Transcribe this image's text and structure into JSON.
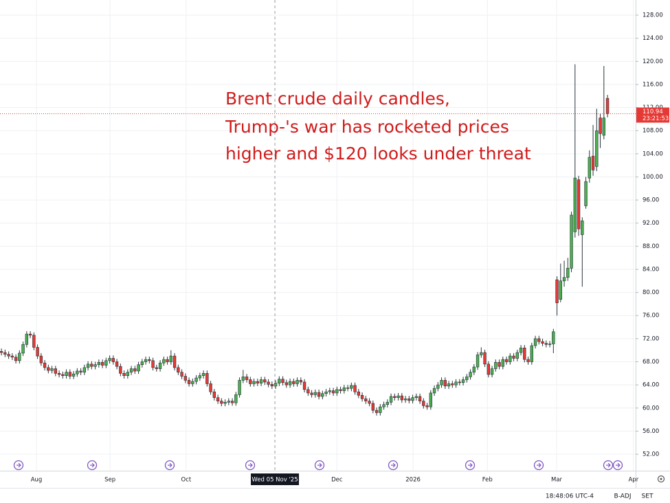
{
  "chart_data": {
    "type": "candlestick",
    "annotation": [
      "Brent crude daily candles,",
      "Trump-'s war has rocketed prices",
      "higher and $120 looks under threat"
    ],
    "categories": [
      null,
      null,
      null,
      null,
      null,
      null,
      null,
      null,
      null,
      null,
      null,
      null,
      null,
      null,
      null,
      null,
      null,
      null,
      null,
      null,
      null,
      null,
      null,
      null,
      null,
      null,
      null,
      null,
      null,
      null,
      null,
      null,
      null,
      null,
      null,
      null,
      null,
      null,
      null,
      null,
      null,
      null,
      null,
      null,
      null,
      null,
      null,
      null,
      null,
      null,
      null,
      null,
      null,
      null,
      null,
      null,
      null,
      null,
      null,
      null,
      null,
      null,
      null,
      null,
      null,
      null,
      null,
      null,
      null,
      null,
      null,
      null,
      null,
      null,
      null,
      null,
      null,
      null,
      null,
      null,
      null,
      null,
      null,
      null,
      null,
      null,
      null,
      null,
      null,
      null,
      null,
      null,
      null,
      null,
      null,
      null,
      null,
      null,
      null,
      null,
      null,
      null,
      null,
      null,
      null,
      null,
      null,
      null,
      null,
      null,
      null,
      null,
      null,
      null,
      null,
      null,
      null,
      null,
      null,
      null,
      null,
      null,
      null,
      null,
      null,
      null,
      null,
      null,
      null,
      null,
      null,
      null,
      null,
      null,
      null,
      null,
      null,
      null,
      null,
      null,
      null,
      null,
      null,
      null,
      null,
      null,
      null,
      null,
      null,
      null,
      null,
      null,
      null,
      null,
      null,
      null,
      null,
      null,
      null,
      null,
      null,
      null,
      null,
      null,
      null,
      null,
      null,
      null,
      null
    ],
    "open": [
      69.8,
      69.6,
      69.3,
      69.0,
      68.8,
      68.2,
      69.5,
      71.0,
      72.8,
      72.6,
      70.5,
      69.0,
      67.8,
      67.0,
      66.5,
      66.8,
      66.0,
      65.8,
      65.6,
      66.2,
      65.5,
      65.9,
      66.4,
      66.2,
      67.0,
      67.6,
      67.2,
      67.5,
      67.9,
      67.4,
      68.2,
      68.6,
      68.0,
      67.2,
      66.0,
      65.6,
      66.2,
      66.8,
      66.4,
      67.5,
      68.0,
      68.4,
      68.2,
      67.0,
      66.8,
      67.8,
      68.4,
      68.0,
      69.0,
      67.0,
      66.2,
      65.5,
      64.8,
      64.2,
      64.6,
      65.2,
      65.6,
      66.0,
      64.2,
      62.8,
      61.8,
      61.2,
      60.8,
      61.0,
      61.2,
      60.9,
      62.3,
      64.8,
      65.4,
      64.9,
      64.2,
      64.6,
      64.3,
      64.9,
      64.5,
      64.1,
      63.8,
      64.3,
      65.0,
      64.4,
      64.0,
      64.6,
      64.2,
      64.8,
      64.5,
      63.2,
      62.6,
      62.3,
      62.7,
      62.0,
      62.5,
      62.8,
      63.0,
      62.6,
      63.2,
      63.0,
      63.5,
      63.4,
      63.9,
      62.8,
      62.2,
      61.6,
      61.2,
      60.8,
      59.6,
      59.2,
      60.2,
      60.6,
      61.0,
      62.0,
      61.8,
      62.1,
      61.4,
      61.6,
      61.3,
      61.8,
      62.0,
      61.2,
      60.4,
      60.2,
      62.6,
      63.4,
      64.0,
      64.8,
      63.8,
      64.2,
      64.0,
      64.5,
      64.4,
      64.9,
      65.4,
      66.2,
      67.1,
      69.2,
      69.6,
      67.6,
      65.8,
      66.8,
      67.9,
      67.2,
      68.4,
      68.0,
      69.0,
      68.6,
      69.6,
      70.4,
      68.4,
      68.0,
      70.8,
      72.0,
      71.5,
      71.2,
      71.0,
      71.1,
      82.2,
      78.8,
      82.0,
      82.6,
      84.2,
      90.5,
      99.5,
      90.0,
      95.0,
      99.8,
      103.6,
      101.8,
      110.2,
      107.2,
      113.6
    ],
    "high": [
      70.3,
      70.1,
      69.8,
      69.5,
      69.3,
      70.0,
      71.5,
      73.3,
      73.3,
      73.1,
      71.0,
      69.5,
      68.3,
      67.5,
      67.3,
      67.3,
      66.5,
      66.3,
      66.7,
      66.7,
      66.4,
      66.9,
      66.9,
      67.5,
      68.1,
      68.1,
      68.0,
      68.4,
      68.4,
      68.7,
      69.1,
      69.1,
      68.5,
      67.7,
      66.5,
      66.7,
      67.3,
      67.3,
      68.0,
      68.5,
      68.9,
      68.9,
      68.7,
      67.5,
      68.3,
      68.9,
      68.9,
      70.0,
      69.5,
      67.5,
      66.7,
      66.0,
      65.3,
      65.1,
      65.7,
      66.1,
      66.5,
      66.5,
      64.7,
      63.3,
      62.3,
      61.7,
      61.5,
      61.7,
      61.7,
      62.8,
      65.3,
      66.6,
      65.9,
      65.4,
      65.1,
      65.1,
      65.4,
      65.4,
      65.0,
      64.6,
      64.8,
      65.5,
      65.5,
      64.9,
      65.1,
      65.1,
      65.3,
      65.3,
      65.0,
      63.7,
      63.1,
      63.2,
      63.2,
      63.0,
      63.3,
      63.5,
      63.5,
      63.7,
      63.7,
      64.0,
      64.0,
      64.4,
      64.4,
      63.3,
      62.7,
      62.1,
      61.7,
      61.3,
      60.1,
      60.7,
      61.1,
      61.5,
      62.5,
      62.5,
      62.6,
      62.6,
      62.1,
      62.1,
      62.3,
      62.5,
      62.5,
      61.7,
      60.9,
      63.1,
      63.9,
      64.5,
      65.3,
      65.3,
      64.7,
      64.7,
      65.0,
      65.0,
      65.4,
      65.9,
      66.7,
      67.6,
      69.7,
      70.5,
      70.1,
      68.1,
      67.3,
      68.4,
      68.4,
      68.9,
      68.9,
      69.5,
      69.5,
      70.1,
      70.9,
      70.9,
      68.9,
      71.3,
      72.5,
      72.5,
      72.0,
      71.7,
      71.6,
      73.7,
      82.8,
      85.0,
      85.5,
      86.0,
      94.0,
      119.5,
      100.2,
      93.0,
      100.0,
      104.6,
      109.0,
      111.8,
      111.0,
      119.2,
      114.2
    ],
    "low": [
      69.1,
      68.8,
      68.5,
      68.3,
      67.7,
      67.7,
      69.0,
      70.5,
      72.1,
      70.0,
      68.5,
      67.3,
      66.5,
      66.0,
      66.0,
      65.5,
      65.3,
      65.1,
      65.1,
      65.0,
      65.0,
      65.4,
      65.7,
      65.7,
      66.5,
      66.7,
      66.7,
      67.0,
      66.9,
      66.9,
      67.7,
      67.5,
      66.7,
      65.5,
      65.1,
      65.1,
      65.7,
      65.9,
      65.9,
      67.0,
      67.5,
      67.7,
      66.5,
      66.3,
      66.3,
      67.3,
      67.5,
      67.5,
      66.5,
      65.7,
      65.0,
      64.3,
      63.7,
      63.7,
      64.1,
      64.7,
      65.1,
      63.7,
      62.3,
      61.3,
      60.7,
      60.3,
      60.3,
      60.5,
      60.4,
      60.4,
      61.8,
      64.3,
      64.4,
      63.7,
      63.7,
      63.8,
      63.8,
      64.0,
      63.6,
      63.3,
      63.3,
      63.8,
      63.9,
      63.5,
      63.5,
      63.7,
      63.7,
      64.0,
      62.7,
      62.1,
      61.8,
      61.8,
      61.5,
      61.5,
      62.0,
      62.3,
      62.1,
      62.1,
      62.5,
      62.5,
      62.9,
      62.9,
      62.3,
      61.7,
      61.1,
      60.7,
      60.3,
      59.1,
      58.7,
      58.7,
      59.7,
      60.1,
      60.5,
      61.3,
      61.3,
      60.9,
      60.9,
      60.8,
      60.8,
      61.3,
      60.7,
      59.9,
      59.7,
      59.7,
      62.1,
      62.9,
      63.5,
      63.3,
      63.3,
      63.5,
      63.5,
      63.9,
      63.9,
      64.4,
      64.9,
      65.7,
      66.6,
      68.7,
      67.1,
      65.3,
      65.3,
      66.3,
      66.7,
      66.7,
      67.5,
      67.5,
      68.1,
      68.1,
      69.1,
      67.9,
      67.5,
      67.5,
      70.3,
      71.0,
      70.7,
      70.5,
      70.5,
      69.5,
      76.0,
      78.3,
      81.0,
      82.0,
      83.5,
      89.5,
      89.8,
      81.0,
      94.5,
      99.0,
      100.2,
      101.0,
      105.0,
      106.5,
      110.3
    ],
    "close": [
      69.6,
      69.3,
      69.0,
      68.8,
      68.2,
      69.5,
      71.0,
      72.8,
      72.6,
      70.5,
      69.0,
      67.8,
      67.0,
      66.5,
      66.8,
      66.0,
      65.8,
      65.6,
      66.2,
      65.5,
      65.9,
      66.4,
      66.2,
      67.0,
      67.6,
      67.2,
      67.5,
      67.9,
      67.4,
      68.2,
      68.6,
      68.0,
      67.2,
      66.0,
      65.6,
      66.2,
      66.8,
      66.4,
      67.5,
      68.0,
      68.4,
      68.2,
      67.0,
      66.8,
      67.8,
      68.4,
      68.0,
      69.0,
      67.0,
      66.2,
      65.5,
      64.8,
      64.2,
      64.6,
      65.2,
      65.6,
      66.0,
      64.2,
      62.8,
      61.8,
      61.2,
      60.8,
      61.0,
      61.2,
      60.9,
      62.3,
      64.8,
      65.4,
      64.9,
      64.2,
      64.6,
      64.3,
      64.9,
      64.5,
      64.1,
      63.8,
      64.3,
      65.0,
      64.4,
      64.0,
      64.6,
      64.2,
      64.8,
      64.5,
      63.2,
      62.6,
      62.3,
      62.7,
      62.0,
      62.5,
      62.8,
      63.0,
      62.6,
      63.2,
      63.0,
      63.5,
      63.4,
      63.9,
      62.8,
      62.2,
      61.6,
      61.2,
      60.8,
      59.6,
      59.2,
      60.2,
      60.6,
      61.0,
      62.0,
      61.8,
      62.1,
      61.4,
      61.6,
      61.3,
      61.8,
      62.0,
      61.2,
      60.4,
      60.2,
      62.6,
      63.4,
      64.0,
      64.8,
      63.8,
      64.2,
      64.0,
      64.5,
      64.4,
      64.9,
      65.4,
      66.2,
      67.1,
      69.2,
      69.6,
      67.6,
      65.8,
      66.8,
      67.9,
      67.2,
      68.4,
      68.0,
      69.0,
      68.6,
      69.6,
      70.4,
      68.4,
      68.0,
      70.8,
      72.0,
      71.5,
      71.2,
      71.0,
      71.1,
      73.2,
      78.2,
      82.0,
      82.6,
      84.2,
      93.4,
      99.8,
      91.0,
      92.4,
      99.2,
      103.4,
      101.2,
      108.0,
      107.5,
      110.2,
      110.94
    ],
    "up_color": "#4caf50",
    "down_color": "#e53935",
    "outline_color": "#263238",
    "ylim": [
      49.15,
      130.62
    ],
    "yticks": [
      {
        "value": 52,
        "label": "52.00"
      },
      {
        "value": 56,
        "label": "56.00"
      },
      {
        "value": 60,
        "label": "60.00"
      },
      {
        "value": 64,
        "label": "64.00"
      },
      {
        "value": 68,
        "label": "68.00"
      },
      {
        "value": 72,
        "label": "72.00"
      },
      {
        "value": 76,
        "label": "76.00"
      },
      {
        "value": 80,
        "label": "80.00"
      },
      {
        "value": 84,
        "label": "84.00"
      },
      {
        "value": 88,
        "label": "88.00"
      },
      {
        "value": 92,
        "label": "92.00"
      },
      {
        "value": 96,
        "label": "96.00"
      },
      {
        "value": 100,
        "label": "100.00"
      },
      {
        "value": 104,
        "label": "104.00"
      },
      {
        "value": 108,
        "label": "108.00"
      },
      {
        "value": 112,
        "label": "112.00"
      },
      {
        "value": 116,
        "label": "116.00"
      },
      {
        "value": 120,
        "label": "120.00"
      },
      {
        "value": 124,
        "label": "124.00"
      },
      {
        "value": 128,
        "label": "128.00"
      }
    ],
    "xlim": [
      -0.4,
      175.8
    ],
    "xticks": [
      {
        "value": 9.7,
        "label": "Aug"
      },
      {
        "value": 30.1,
        "label": "Sep"
      },
      {
        "value": 51.2,
        "label": "Oct"
      },
      {
        "value": 93,
        "label": "Dec"
      },
      {
        "value": 114.1,
        "label": "2026"
      },
      {
        "value": 134.7,
        "label": "Feb"
      },
      {
        "value": 153.9,
        "label": "Mar"
      },
      {
        "value": 175.2,
        "label": "Apr"
      }
    ],
    "crosshair": {
      "value": 75.8,
      "label": "Wed 05 Nov '25"
    },
    "countdown": "23:21:53",
    "grid": true
  },
  "status_bar": {
    "time": "18:48:06 UTC-4",
    "adjust": "B-ADJ",
    "session": "SET"
  }
}
